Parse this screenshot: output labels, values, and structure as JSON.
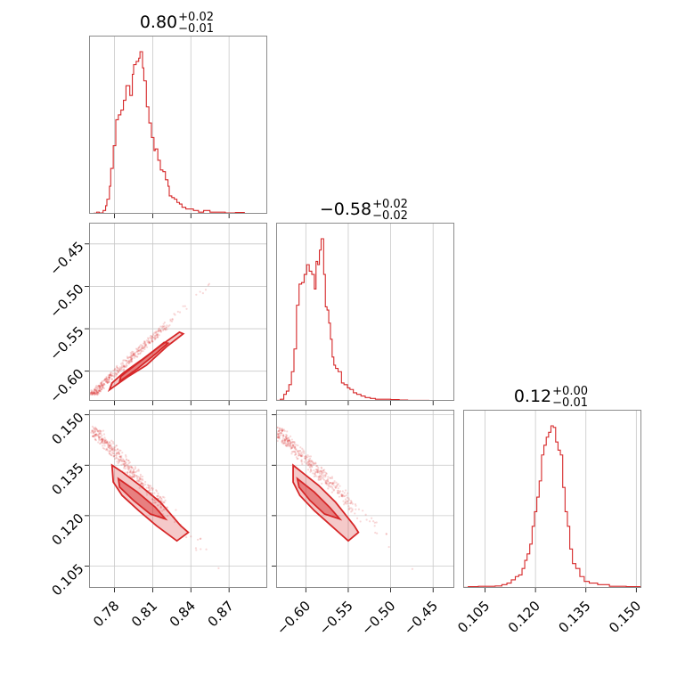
{
  "chart_data": {
    "type": "corner",
    "color": "#d62728",
    "parameters": [
      {
        "range": [
          0.76,
          0.9
        ],
        "ticks": [
          0.78,
          0.81,
          0.84,
          0.87
        ],
        "tick_labels": [
          "0.78",
          "0.81",
          "0.84",
          "0.87"
        ],
        "title": {
          "median": "0.80",
          "plus": "+0.02",
          "minus": "−0.01"
        }
      },
      {
        "range": [
          -0.635,
          -0.425
        ],
        "ticks": [
          -0.6,
          -0.55,
          -0.5,
          -0.45
        ],
        "tick_labels": [
          "−0.60",
          "−0.55",
          "−0.50",
          "−0.45"
        ],
        "title": {
          "median": "−0.58",
          "plus": "+0.02",
          "minus": "−0.02"
        }
      },
      {
        "range": [
          0.0985,
          0.1515
        ],
        "ticks": [
          0.105,
          0.12,
          0.135,
          0.15
        ],
        "tick_labels": [
          "0.105",
          "0.120",
          "0.135",
          "0.150"
        ],
        "title": {
          "median": "0.12",
          "plus": "+0.00",
          "minus": "−0.01"
        }
      }
    ],
    "histograms": [
      {
        "param": 0,
        "points": [
          [
            0.76,
            0.002
          ],
          [
            0.764,
            0.004
          ],
          [
            0.766,
            0.01
          ],
          [
            0.768,
            0.005
          ],
          [
            0.771,
            0.02
          ],
          [
            0.773,
            0.05
          ],
          [
            0.774,
            0.09
          ],
          [
            0.776,
            0.17
          ],
          [
            0.777,
            0.28
          ],
          [
            0.779,
            0.42
          ],
          [
            0.781,
            0.58
          ],
          [
            0.783,
            0.61
          ],
          [
            0.785,
            0.64
          ],
          [
            0.787,
            0.7
          ],
          [
            0.789,
            0.79
          ],
          [
            0.79,
            0.79
          ],
          [
            0.792,
            0.73
          ],
          [
            0.794,
            0.86
          ],
          [
            0.795,
            0.92
          ],
          [
            0.797,
            0.94
          ],
          [
            0.799,
            0.96
          ],
          [
            0.8,
            1.0
          ],
          [
            0.802,
            0.9
          ],
          [
            0.803,
            0.82
          ],
          [
            0.805,
            0.66
          ],
          [
            0.807,
            0.56
          ],
          [
            0.809,
            0.47
          ],
          [
            0.811,
            0.39
          ],
          [
            0.812,
            0.4
          ],
          [
            0.814,
            0.33
          ],
          [
            0.816,
            0.27
          ],
          [
            0.818,
            0.26
          ],
          [
            0.82,
            0.21
          ],
          [
            0.822,
            0.17
          ],
          [
            0.823,
            0.11
          ],
          [
            0.825,
            0.1
          ],
          [
            0.827,
            0.09
          ],
          [
            0.829,
            0.07
          ],
          [
            0.831,
            0.06
          ],
          [
            0.833,
            0.04
          ],
          [
            0.836,
            0.03
          ],
          [
            0.839,
            0.03
          ],
          [
            0.842,
            0.02
          ],
          [
            0.846,
            0.01
          ],
          [
            0.85,
            0.02
          ],
          [
            0.855,
            0.01
          ],
          [
            0.86,
            0.01
          ],
          [
            0.867,
            0.005
          ],
          [
            0.875,
            0.008
          ],
          [
            0.882,
            0.002
          ],
          [
            0.89,
            0.0
          ]
        ]
      },
      {
        "param": 1,
        "points": [
          [
            -0.635,
            0.003
          ],
          [
            -0.63,
            0.01
          ],
          [
            -0.626,
            0.04
          ],
          [
            -0.623,
            0.06
          ],
          [
            -0.62,
            0.1
          ],
          [
            -0.617,
            0.18
          ],
          [
            -0.614,
            0.32
          ],
          [
            -0.611,
            0.59
          ],
          [
            -0.608,
            0.72
          ],
          [
            -0.605,
            0.73
          ],
          [
            -0.602,
            0.78
          ],
          [
            -0.599,
            0.84
          ],
          [
            -0.596,
            0.8
          ],
          [
            -0.593,
            0.78
          ],
          [
            -0.59,
            0.69
          ],
          [
            -0.588,
            0.86
          ],
          [
            -0.586,
            0.84
          ],
          [
            -0.584,
            0.93
          ],
          [
            -0.582,
            1.0
          ],
          [
            -0.579,
            0.78
          ],
          [
            -0.577,
            0.58
          ],
          [
            -0.575,
            0.56
          ],
          [
            -0.573,
            0.48
          ],
          [
            -0.571,
            0.38
          ],
          [
            -0.569,
            0.27
          ],
          [
            -0.567,
            0.22
          ],
          [
            -0.565,
            0.2
          ],
          [
            -0.562,
            0.18
          ],
          [
            -0.558,
            0.11
          ],
          [
            -0.555,
            0.1
          ],
          [
            -0.551,
            0.08
          ],
          [
            -0.548,
            0.07
          ],
          [
            -0.544,
            0.05
          ],
          [
            -0.54,
            0.04
          ],
          [
            -0.535,
            0.03
          ],
          [
            -0.53,
            0.02
          ],
          [
            -0.524,
            0.015
          ],
          [
            -0.518,
            0.01
          ],
          [
            -0.51,
            0.01
          ],
          [
            -0.5,
            0.008
          ],
          [
            -0.49,
            0.005
          ],
          [
            -0.48,
            0.003
          ],
          [
            -0.47,
            0.003
          ],
          [
            -0.455,
            0.002
          ],
          [
            -0.44,
            0.002
          ],
          [
            -0.425,
            0.0
          ]
        ]
      },
      {
        "param": 2,
        "points": [
          [
            0.0985,
            0.003
          ],
          [
            0.1,
            0.008
          ],
          [
            0.103,
            0.01
          ],
          [
            0.108,
            0.012
          ],
          [
            0.11,
            0.02
          ],
          [
            0.1115,
            0.03
          ],
          [
            0.1128,
            0.05
          ],
          [
            0.114,
            0.07
          ],
          [
            0.115,
            0.08
          ],
          [
            0.116,
            0.12
          ],
          [
            0.1168,
            0.17
          ],
          [
            0.1175,
            0.21
          ],
          [
            0.1183,
            0.27
          ],
          [
            0.119,
            0.38
          ],
          [
            0.1197,
            0.47
          ],
          [
            0.1204,
            0.56
          ],
          [
            0.1211,
            0.66
          ],
          [
            0.1218,
            0.82
          ],
          [
            0.1225,
            0.88
          ],
          [
            0.1232,
            0.93
          ],
          [
            0.1239,
            0.96
          ],
          [
            0.1246,
            1.0
          ],
          [
            0.1253,
            0.99
          ],
          [
            0.126,
            0.9
          ],
          [
            0.1267,
            0.85
          ],
          [
            0.1274,
            0.82
          ],
          [
            0.1281,
            0.62
          ],
          [
            0.1288,
            0.47
          ],
          [
            0.1295,
            0.38
          ],
          [
            0.1302,
            0.24
          ],
          [
            0.131,
            0.15
          ],
          [
            0.132,
            0.12
          ],
          [
            0.1332,
            0.07
          ],
          [
            0.1345,
            0.04
          ],
          [
            0.136,
            0.03
          ],
          [
            0.1385,
            0.02
          ],
          [
            0.142,
            0.01
          ],
          [
            0.147,
            0.008
          ],
          [
            0.1515,
            0.0
          ]
        ]
      }
    ],
    "pairs": [
      {
        "x_param": 0,
        "y_param": 1,
        "scatter_line": [
          [
            0.763,
            -0.627
          ],
          [
            0.868,
            -0.478
          ]
        ],
        "spread": 0.004,
        "contours": [
          [
            [
              0.776,
              -0.622
            ],
            [
              0.79,
              -0.607
            ],
            [
              0.805,
              -0.593
            ],
            [
              0.821,
              -0.571
            ],
            [
              0.834,
              -0.556
            ],
            [
              0.831,
              -0.554
            ],
            [
              0.817,
              -0.569
            ],
            [
              0.801,
              -0.587
            ],
            [
              0.787,
              -0.602
            ],
            [
              0.778,
              -0.614
            ]
          ],
          [
            [
              0.784,
              -0.612
            ],
            [
              0.798,
              -0.597
            ],
            [
              0.812,
              -0.58
            ],
            [
              0.822,
              -0.567
            ],
            [
              0.819,
              -0.566
            ],
            [
              0.805,
              -0.583
            ],
            [
              0.791,
              -0.599
            ],
            [
              0.785,
              -0.606
            ]
          ]
        ]
      },
      {
        "x_param": 0,
        "y_param": 2,
        "scatter_line": [
          [
            0.765,
            0.145
          ],
          [
            0.864,
            0.104
          ]
        ],
        "spread": 0.004,
        "contours": [
          [
            [
              0.778,
              0.135
            ],
            [
              0.786,
              0.133
            ],
            [
              0.8,
              0.129
            ],
            [
              0.816,
              0.124
            ],
            [
              0.832,
              0.117
            ],
            [
              0.838,
              0.115
            ],
            [
              0.829,
              0.1125
            ],
            [
              0.813,
              0.117
            ],
            [
              0.799,
              0.1215
            ],
            [
              0.786,
              0.126
            ],
            [
              0.779,
              0.13
            ]
          ],
          [
            [
              0.783,
              0.131
            ],
            [
              0.798,
              0.127
            ],
            [
              0.812,
              0.1225
            ],
            [
              0.82,
              0.119
            ],
            [
              0.808,
              0.1205
            ],
            [
              0.795,
              0.1245
            ],
            [
              0.784,
              0.1285
            ]
          ]
        ]
      },
      {
        "x_param": 1,
        "y_param": 2,
        "scatter_line": [
          [
            -0.633,
            0.145
          ],
          [
            -0.47,
            0.104
          ]
        ],
        "spread": 0.004,
        "contours": [
          [
            [
              -0.615,
              0.135
            ],
            [
              -0.605,
              0.133
            ],
            [
              -0.585,
              0.129
            ],
            [
              -0.565,
              0.124
            ],
            [
              -0.543,
              0.117
            ],
            [
              -0.538,
              0.115
            ],
            [
              -0.55,
              0.1125
            ],
            [
              -0.57,
              0.117
            ],
            [
              -0.59,
              0.1215
            ],
            [
              -0.607,
              0.126
            ],
            [
              -0.615,
              0.13
            ]
          ],
          [
            [
              -0.61,
              0.131
            ],
            [
              -0.59,
              0.127
            ],
            [
              -0.572,
              0.1225
            ],
            [
              -0.56,
              0.119
            ],
            [
              -0.578,
              0.1205
            ],
            [
              -0.595,
              0.1245
            ],
            [
              -0.608,
              0.1285
            ]
          ]
        ]
      }
    ]
  }
}
